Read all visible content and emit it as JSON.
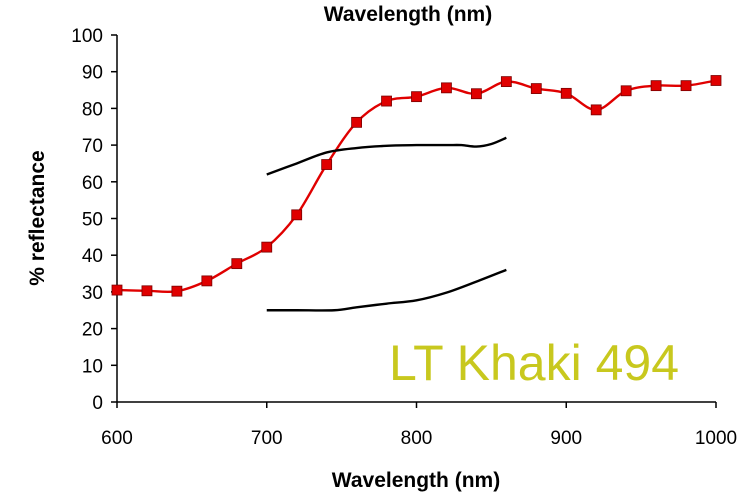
{
  "chart_data": {
    "type": "line",
    "title": "Wavelength (nm)",
    "xlabel": "Wavelength (nm)",
    "ylabel": "% reflectance",
    "xlim": [
      600,
      1000
    ],
    "ylim": [
      0,
      100
    ],
    "x_ticks": [
      600,
      700,
      800,
      900,
      1000
    ],
    "y_ticks": [
      0,
      10,
      20,
      30,
      40,
      50,
      60,
      70,
      80,
      90,
      100
    ],
    "grid": false,
    "annotation": "LT Khaki 494",
    "annotation_color": "#c8c81e",
    "series": [
      {
        "color": "#e00000",
        "marker": "square",
        "x": [
          600,
          620,
          640,
          660,
          680,
          700,
          720,
          740,
          760,
          780,
          800,
          820,
          840,
          860,
          880,
          900,
          920,
          940,
          960,
          980,
          1000
        ],
        "y": [
          30.5,
          30.3,
          30.2,
          33.0,
          37.7,
          42.2,
          51.0,
          64.7,
          76.2,
          82.0,
          83.2,
          85.6,
          84.0,
          87.3,
          85.4,
          84.1,
          79.6,
          84.8,
          86.2,
          86.2,
          87.6
        ]
      },
      {
        "color": "#000000",
        "marker": "none",
        "x": [
          700,
          720,
          740,
          760,
          780,
          800,
          820,
          830,
          840,
          850,
          860
        ],
        "y": [
          62.0,
          65.0,
          68.0,
          69.2,
          69.8,
          70.0,
          70.0,
          70.0,
          69.6,
          70.3,
          72.0
        ]
      },
      {
        "color": "#000000",
        "marker": "none",
        "x": [
          700,
          720,
          745,
          760,
          780,
          800,
          820,
          840,
          860
        ],
        "y": [
          25.0,
          25.0,
          25.0,
          25.8,
          26.8,
          27.7,
          29.8,
          32.8,
          36.0
        ]
      }
    ]
  }
}
